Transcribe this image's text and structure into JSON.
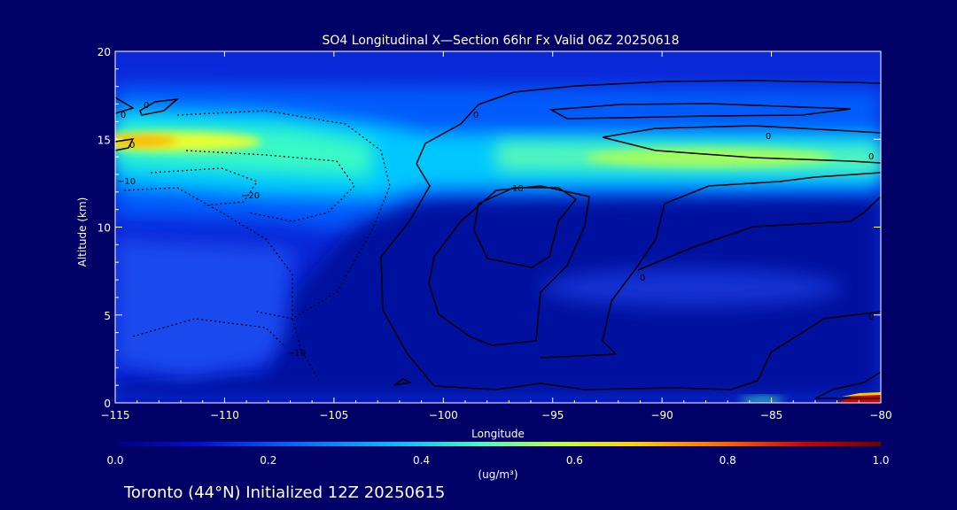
{
  "chart_data": {
    "type": "heatmap",
    "title": "SO4 Longitudinal X—Section 66hr  Fx Valid 06Z 20250618",
    "xlabel": "Longitude",
    "ylabel": "Altitude (km)",
    "xlim": [
      -115,
      -80
    ],
    "ylim": [
      0,
      20
    ],
    "x_ticks": [
      -115,
      -110,
      -105,
      -100,
      -95,
      -90,
      -85,
      -80
    ],
    "x_tick_labels": [
      "−115",
      "−110",
      "−105",
      "−100",
      "−95",
      "−90",
      "−85",
      "−80"
    ],
    "y_ticks": [
      0,
      5,
      10,
      15,
      20
    ],
    "y_tick_labels": [
      "0",
      "5",
      "10",
      "15",
      "20"
    ],
    "colorbar": {
      "min": 0.0,
      "max": 1.0,
      "ticks": [
        0.0,
        0.2,
        0.4,
        0.6,
        0.8,
        1.0
      ],
      "tick_labels": [
        "0.0",
        "0.2",
        "0.4",
        "0.6",
        "0.8",
        "1.0"
      ],
      "units_text": "(ug/m³)",
      "colors": [
        "#000080",
        "#0010d0",
        "#0060ff",
        "#00c8ff",
        "#40ffc0",
        "#c0ff40",
        "#ffd000",
        "#ff6000",
        "#d00000",
        "#700000"
      ]
    },
    "field": {
      "background_value": 0.02,
      "features": [
        {
          "lon": -113.5,
          "alt": 14.8,
          "value": 0.62
        },
        {
          "lon": -108.0,
          "alt": 14.2,
          "value": 0.48
        },
        {
          "lon": -104.0,
          "alt": 13.8,
          "value": 0.4
        },
        {
          "lon": -88.0,
          "alt": 14.0,
          "value": 0.5
        },
        {
          "lon": -96.0,
          "alt": 14.2,
          "value": 0.44
        },
        {
          "lon": -82.0,
          "alt": 13.8,
          "value": 0.42
        },
        {
          "lon": -90.0,
          "alt": 17.5,
          "value": 0.16
        },
        {
          "lon": -110.0,
          "alt": 5.0,
          "value": 0.16
        },
        {
          "lon": -91.0,
          "alt": 6.5,
          "value": 0.12
        },
        {
          "lon": -97.0,
          "alt": 10.0,
          "value": 0.12
        },
        {
          "lon": -84.0,
          "alt": 0.3,
          "value": 0.45
        },
        {
          "lon": -81.0,
          "alt": 0.3,
          "value": 0.92
        }
      ]
    },
    "contour_labels": [
      "0",
      "0",
      "0",
      "−10",
      "−20",
      "−10",
      "0",
      "10",
      "0",
      "0",
      "0",
      "0"
    ]
  },
  "footer_text": "Toronto (44°N) Initialized 12Z 20250615"
}
